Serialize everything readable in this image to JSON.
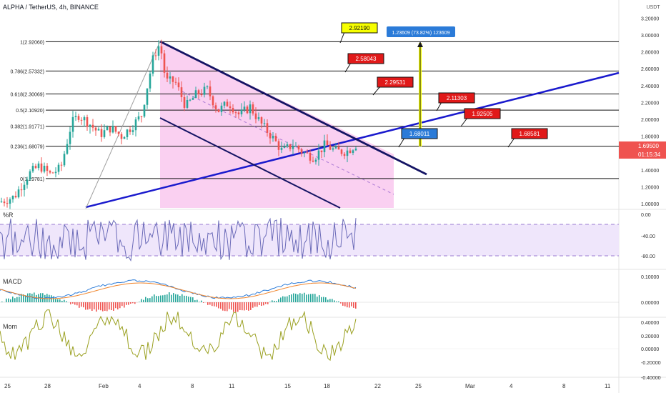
{
  "header": {
    "title": "ALPHA / TetherUS, 4h, BINANCE"
  },
  "currency": "USDT",
  "colors": {
    "up": "#26a69a",
    "down": "#ef5350",
    "channel": "#141464",
    "trend": "#1a1acd",
    "fill": "#f9c8ee",
    "rsi": "#6a6ab8",
    "rsiband": "#efe6fb",
    "macd": "#2b7bd8",
    "signal": "#f0862e",
    "mom": "#9aa020",
    "current": "#ef5350"
  },
  "price_axis": [
    "3.20000",
    "3.00000",
    "2.80000",
    "2.60000",
    "2.40000",
    "2.20000",
    "2.00000",
    "1.80000",
    "1.60000",
    "1.40000",
    "1.20000",
    "1.00000"
  ],
  "wr_axis": [
    "0.00",
    "-40.00",
    "-80.00"
  ],
  "macd_axis": [
    "0.10000",
    "0.00000"
  ],
  "mom_axis": [
    "0.40000",
    "0.20000",
    "0.00000",
    "-0.20000",
    "-0.40000"
  ],
  "time_axis": [
    "25",
    "28",
    "Feb",
    "4",
    "8",
    "11",
    "15",
    "18",
    "22",
    "25",
    "Mar",
    "4",
    "8",
    "11"
  ],
  "indicators": {
    "wr": "%R",
    "macd": "MACD",
    "mom": "Mom"
  },
  "current_price": {
    "value": "1.69500",
    "countdown": "01:15:34"
  },
  "chart_data": {
    "type": "candlestick",
    "symbol": "ALPHA / TetherUS",
    "interval": "4h",
    "exchange": "BINANCE",
    "fib_levels": [
      {
        "label": "1(2.92060)",
        "value": 2.9206
      },
      {
        "label": "0.786(2.57332)",
        "value": 2.57332
      },
      {
        "label": "0.618(2.30069)",
        "value": 2.30069
      },
      {
        "label": "0.5(2.10920)",
        "value": 2.1092
      },
      {
        "label": "0.382(1.91771)",
        "value": 1.91771
      },
      {
        "label": "0.236(1.68079)",
        "value": 1.68079
      },
      {
        "label": "0(1.29781)",
        "value": 1.29781
      }
    ],
    "labels": [
      {
        "text": "2.92190",
        "color": "yellow"
      },
      {
        "text": "2.58043",
        "color": "red"
      },
      {
        "text": "2.29531",
        "color": "red"
      },
      {
        "text": "2.11303",
        "color": "red"
      },
      {
        "text": "1.92505",
        "color": "red"
      },
      {
        "text": "1.68011",
        "color": "blue"
      },
      {
        "text": "1.68581",
        "color": "red"
      }
    ],
    "measure": "1.23609 (73.82%) 123609",
    "ylim": [
      1.0,
      3.2
    ],
    "last_close": 1.695
  }
}
